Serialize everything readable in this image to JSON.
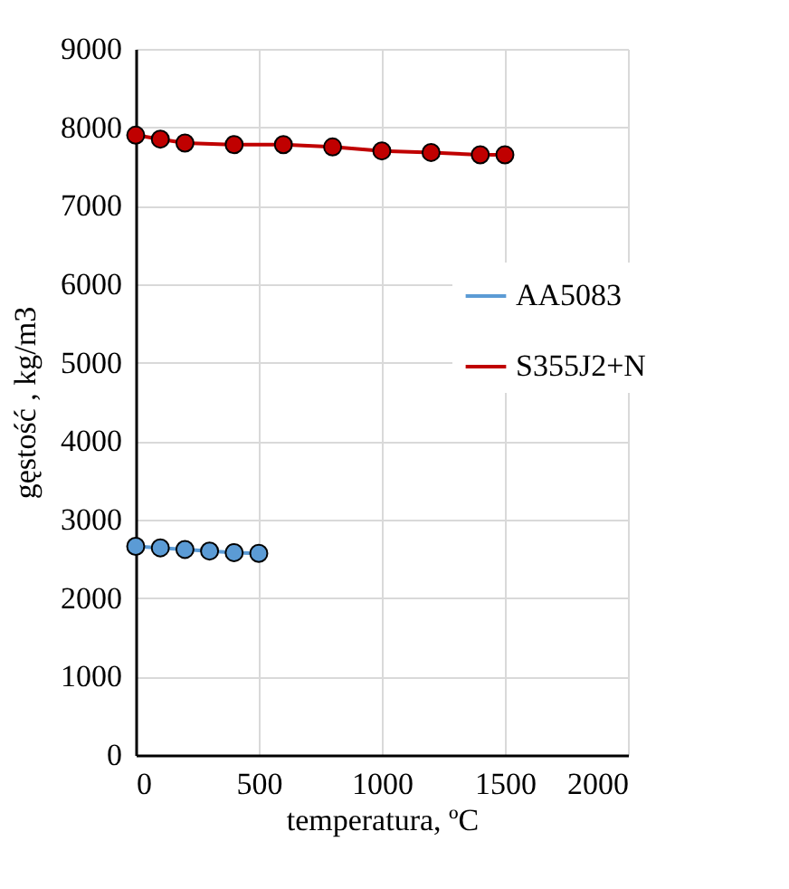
{
  "chart_data": {
    "type": "line",
    "xlabel": "temperatura, ºC",
    "ylabel": "gęstość , kg/m3",
    "xlim": [
      0,
      2000
    ],
    "xticks": [
      0,
      500,
      1000,
      1500,
      2000
    ],
    "ylim": [
      0,
      9000
    ],
    "yticks": [
      0,
      1000,
      2000,
      3000,
      4000,
      5000,
      6000,
      7000,
      8000,
      9000
    ],
    "grid": true,
    "legend": "right",
    "marker": "circle",
    "series": [
      {
        "name": "AA5083",
        "color": "#5b9bd5",
        "x": [
          0,
          100,
          200,
          300,
          400,
          500
        ],
        "values": [
          2660,
          2640,
          2620,
          2600,
          2580,
          2570
        ]
      },
      {
        "name": "S355J2+N",
        "color": "#c00000",
        "x": [
          0,
          100,
          200,
          400,
          600,
          800,
          1000,
          1200,
          1400,
          1500
        ],
        "values": [
          7900,
          7850,
          7800,
          7780,
          7780,
          7750,
          7700,
          7680,
          7650,
          7650
        ]
      }
    ]
  }
}
